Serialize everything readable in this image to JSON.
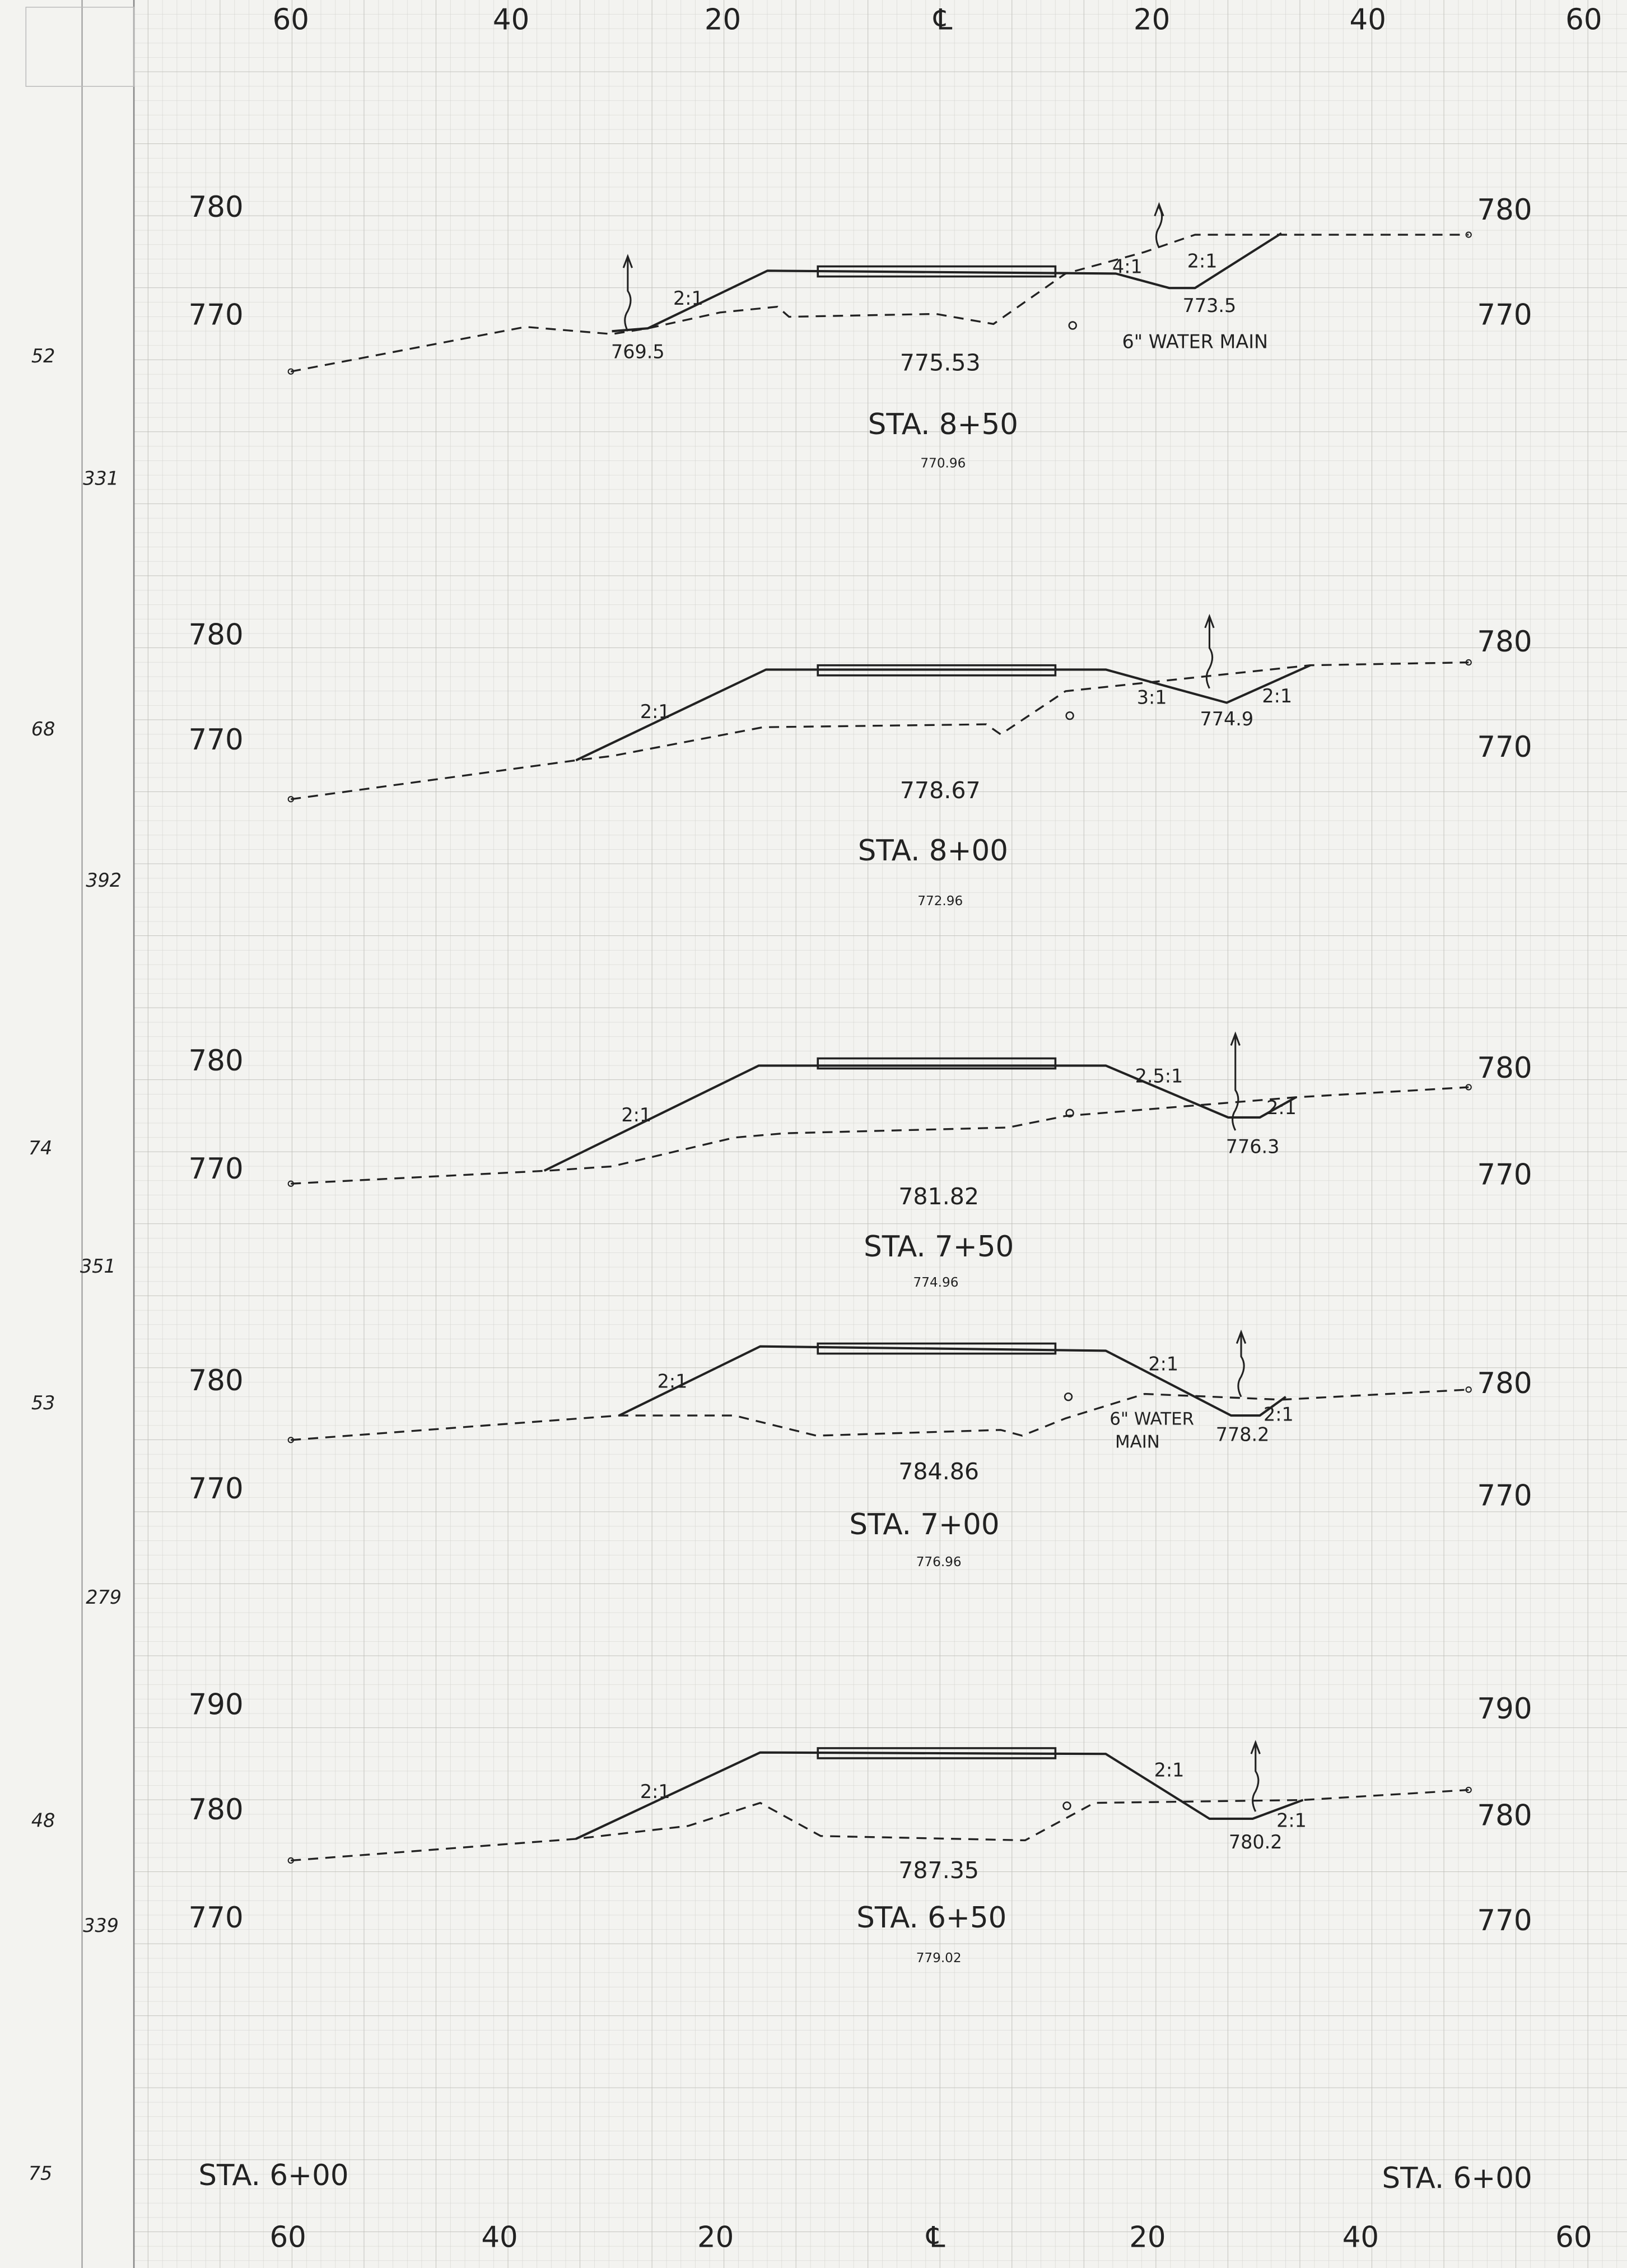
{
  "top_axis": [
    "60",
    "40",
    "20",
    "℄",
    "20",
    "40",
    "60"
  ],
  "bottom_axis": [
    "60",
    "40",
    "20",
    "℄",
    "20",
    "40",
    "60"
  ],
  "margin_numbers": [
    "52",
    "331",
    "68",
    "392",
    "74",
    "351",
    "53",
    "279",
    "48",
    "339",
    "75"
  ],
  "sections": [
    {
      "labels": [
        "780",
        "770",
        "780",
        "770",
        "2:1",
        "4:1",
        "2:1",
        "773.5",
        "769.5",
        "775.53",
        "6\" WATER MAIN",
        "STA. 8+50",
        "770.96"
      ]
    },
    {
      "labels": [
        "780",
        "770",
        "780",
        "770",
        "2:1",
        "3:1",
        "774.9",
        "2:1",
        "778.67",
        "STA. 8+00",
        "772.96"
      ]
    },
    {
      "labels": [
        "780",
        "770",
        "780",
        "770",
        "2:1",
        "2.5:1",
        "776.3",
        "2:1",
        "781.82",
        "STA. 7+50",
        "774.96"
      ]
    },
    {
      "labels": [
        "780",
        "770",
        "780",
        "770",
        "2:1",
        "2:1",
        "784.86",
        "STA. 7+00",
        "776.96",
        "6\" WATER",
        "MAIN",
        "778.2",
        "2:1"
      ]
    },
    {
      "labels": [
        "790",
        "780",
        "770",
        "790",
        "780",
        "770",
        "2:1",
        "2:1",
        "780.2",
        "2:1",
        "787.35",
        "STA. 6+50",
        "779.02"
      ]
    }
  ],
  "footer": {
    "left_station": "STA. 6+00",
    "right_station": "STA. 6+00"
  }
}
